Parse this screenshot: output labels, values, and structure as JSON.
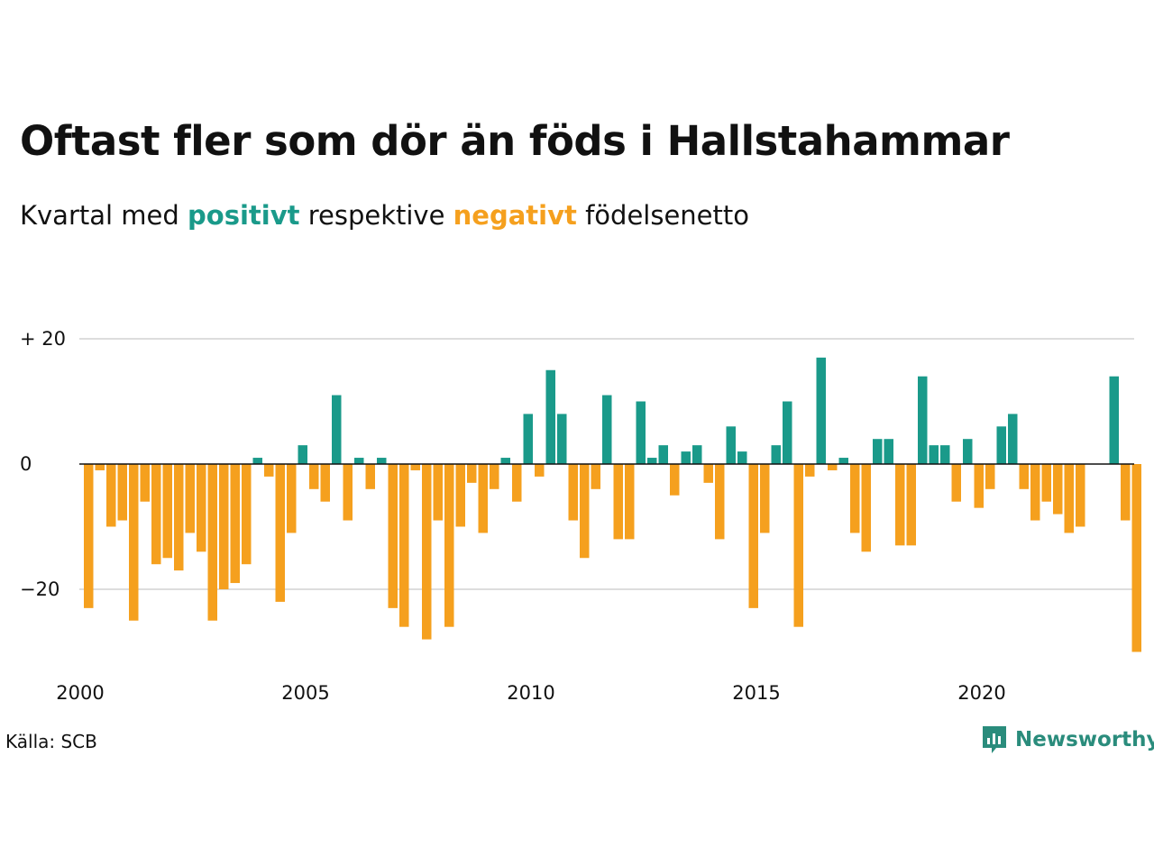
{
  "title": "Oftast fler som dör än föds i Hallstahammar",
  "subtitle": {
    "prefix": "Kvartal med ",
    "positive_word": "positivt",
    "middle": " respektive ",
    "negative_word": "negativt",
    "suffix": " födelsenetto"
  },
  "source": "Källa: SCB",
  "brand": {
    "name": "Newsworthy",
    "icon": "newsworthy-logo-icon"
  },
  "colors": {
    "positive": "#1a9a8a",
    "negative": "#f5a01e",
    "grid": "#dddddd",
    "brand": "#2a8c7c"
  },
  "chart_data": {
    "type": "bar",
    "title": "Oftast fler som dör än föds i Hallstahammar",
    "subtitle": "Kvartal med positivt respektive negativt födelsenetto",
    "x_start_year": 2000,
    "periods_per_year": 4,
    "values": [
      -23,
      -1,
      -10,
      -9,
      -25,
      -6,
      -16,
      -15,
      -17,
      -11,
      -14,
      -25,
      -20,
      -19,
      -16,
      1,
      -2,
      -22,
      -11,
      3,
      -4,
      -6,
      11,
      -9,
      1,
      -4,
      1,
      -23,
      -26,
      -1,
      -28,
      -9,
      -26,
      -10,
      -3,
      -11,
      -4,
      1,
      -6,
      8,
      -2,
      15,
      8,
      -9,
      -15,
      -4,
      11,
      -12,
      -12,
      10,
      1,
      3,
      -5,
      2,
      3,
      -3,
      -12,
      6,
      2,
      -23,
      -11,
      3,
      10,
      -26,
      -2,
      17,
      -1,
      1,
      -11,
      -14,
      4,
      4,
      -13,
      -13,
      14,
      3,
      3,
      -6,
      4,
      -7,
      -4,
      6,
      8,
      -4,
      -9,
      -6,
      -8,
      -11,
      -10,
      0,
      0,
      14,
      -9,
      -30
    ],
    "ylim": [
      -30,
      20
    ],
    "y_ticks": [
      20,
      0,
      -20
    ],
    "y_tick_labels": [
      "+ 20",
      "0",
      "−20"
    ],
    "x_ticks": [
      2000,
      2005,
      2010,
      2015,
      2020
    ],
    "x_tick_labels": [
      "2000",
      "2005",
      "2010",
      "2015",
      "2020"
    ],
    "grid": true,
    "legend": "none"
  }
}
